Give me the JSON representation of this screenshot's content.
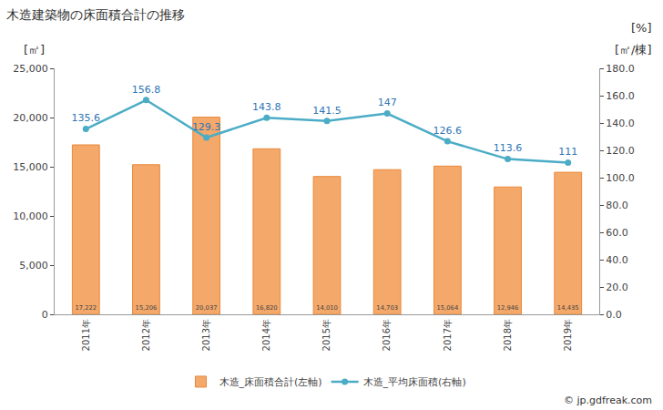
{
  "chart_data": {
    "type": "bar",
    "title": "木造建築物の床面積合計の推移",
    "categories": [
      "2011年",
      "2012年",
      "2013年",
      "2014年",
      "2015年",
      "2016年",
      "2017年",
      "2018年",
      "2019年"
    ],
    "series": [
      {
        "name": "木造_床面積合計(左軸)",
        "type": "bar",
        "color": "#f4a86a",
        "values": [
          17222,
          15206,
          20037,
          16820,
          14010,
          14703,
          15064,
          12946,
          14435
        ],
        "value_labels": [
          "17,222",
          "15,206",
          "20,037",
          "16,820",
          "14,010",
          "14,703",
          "15,064",
          "12,946",
          "14,435"
        ]
      },
      {
        "name": "木造_平均床面積(右軸)",
        "type": "line",
        "color": "#4bacc6",
        "axis": "y2",
        "marker": "circle",
        "values": [
          135.6,
          156.8,
          129.3,
          143.8,
          141.5,
          147,
          126.6,
          113.6,
          111
        ]
      }
    ],
    "data_labels": true,
    "ylim": [
      0,
      25000
    ],
    "yticks": [
      0,
      {
        "value": 5000,
        "label": "5,000"
      },
      {
        "value": 10000,
        "label": "10,000"
      },
      {
        "value": 15000,
        "label": "15,000"
      },
      {
        "value": 20000,
        "label": "20,000"
      },
      {
        "value": 25000,
        "label": "25,000"
      }
    ],
    "y2lim": [
      0,
      180
    ],
    "y2ticks": [
      {
        "value": 0,
        "label": "0.0"
      },
      {
        "value": 20,
        "label": "20.0"
      },
      {
        "value": 40,
        "label": "40.0"
      },
      {
        "value": 60,
        "label": "60.0"
      },
      {
        "value": 80,
        "label": "80.0"
      },
      {
        "value": 100,
        "label": "100.0"
      },
      {
        "value": 120,
        "label": "120.0"
      },
      {
        "value": 140,
        "label": "140.0"
      },
      {
        "value": 160,
        "label": "160.0"
      },
      {
        "value": 180,
        "label": "180.0"
      }
    ],
    "y_unit_label": "[㎡]",
    "y2_unit_labels": [
      "[%]",
      "[㎡/棟]"
    ],
    "credit": "© jp.gdfreak.com",
    "grid": false,
    "legend": "bottom"
  }
}
